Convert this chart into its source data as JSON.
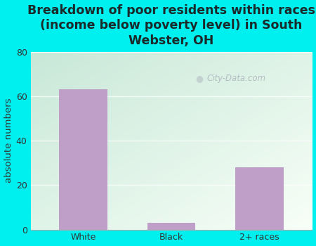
{
  "categories": [
    "White",
    "Black",
    "2+ races"
  ],
  "values": [
    63,
    3,
    28
  ],
  "bar_color": "#bf9fc8",
  "title": "Breakdown of poor residents within races\n(income below poverty level) in South\nWebster, OH",
  "ylabel": "absolute numbers",
  "ylim": [
    0,
    80
  ],
  "yticks": [
    0,
    20,
    40,
    60,
    80
  ],
  "background_color": "#00efef",
  "plot_bg_topleft": "#c8e8d8",
  "plot_bg_bottomright": "#f8fff8",
  "watermark": "City-Data.com",
  "title_fontsize": 12.5,
  "ylabel_fontsize": 9.5,
  "tick_fontsize": 9,
  "title_color": "#1a2a2a"
}
